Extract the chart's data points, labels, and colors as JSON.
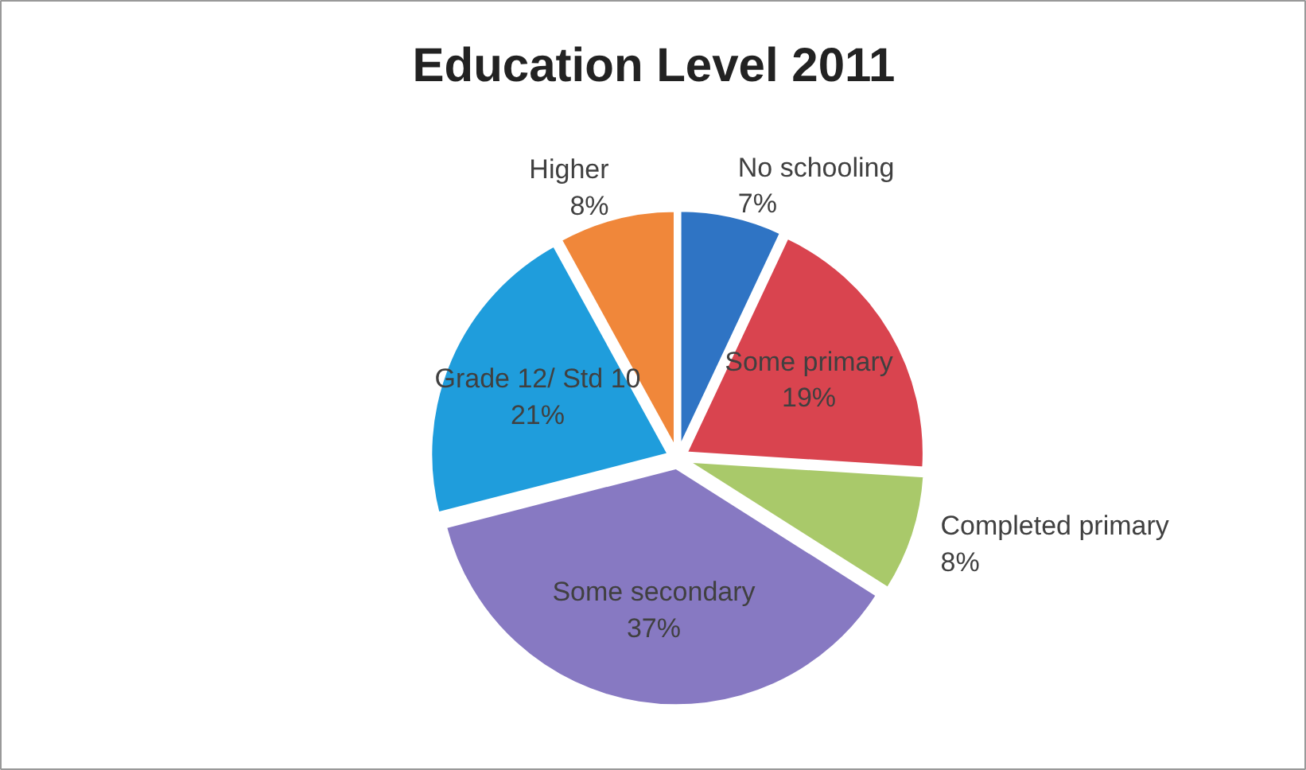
{
  "chart_data": {
    "type": "pie",
    "title": "Education Level 2011",
    "categories": [
      "No schooling",
      "Some primary",
      "Completed primary",
      "Some secondary",
      "Grade 12/ Std 10",
      "Higher"
    ],
    "values": [
      7,
      19,
      8,
      37,
      21,
      8
    ],
    "colors": [
      "#2f74c4",
      "#d9444f",
      "#a9c96a",
      "#8779c2",
      "#1f9ddc",
      "#f0873a"
    ],
    "value_labels": [
      "7%",
      "19%",
      "8%",
      "37%",
      "21%",
      "8%"
    ]
  }
}
